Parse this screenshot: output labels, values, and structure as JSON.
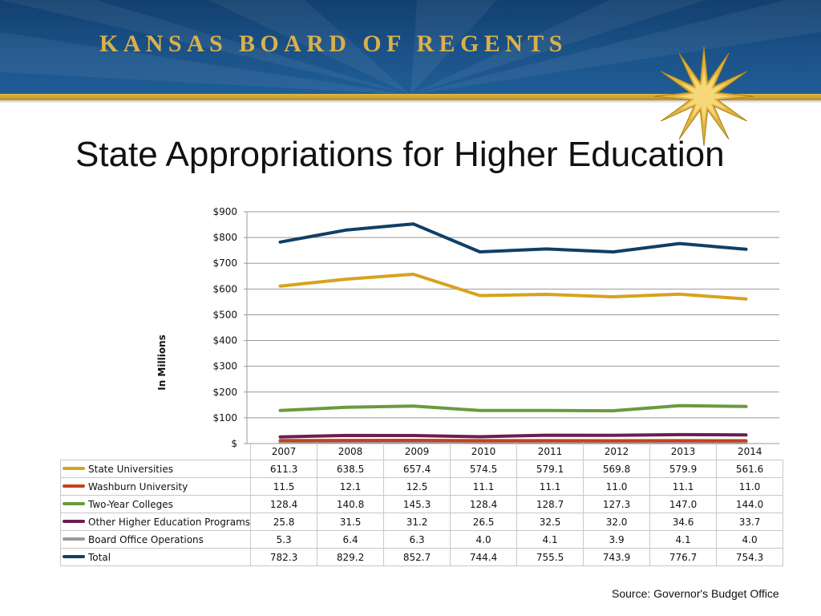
{
  "header": {
    "banner_title": "KANSAS BOARD OF REGENTS"
  },
  "page": {
    "title": "State Appropriations for Higher Education",
    "source": "Source: Governor's Budget Office"
  },
  "colors": {
    "banner": "#1b5288",
    "gold": "#d9b14a",
    "state_universities": "#d8a21e",
    "washburn": "#c8401c",
    "two_year": "#6a9a3e",
    "other": "#6a1f4f",
    "board_office": "#9a9a9a",
    "total": "#0f3f66"
  },
  "chart_data": {
    "type": "line",
    "ylabel": "In Millions",
    "ylim": [
      0,
      900
    ],
    "ytick_values": [
      0,
      100,
      200,
      300,
      400,
      500,
      600,
      700,
      800,
      900
    ],
    "ytick_labels": [
      "$",
      "$100",
      "$200",
      "$300",
      "$400",
      "$500",
      "$600",
      "$700",
      "$800",
      "$900"
    ],
    "grid": true,
    "categories": [
      "2007",
      "2008",
      "2009",
      "2010",
      "2011",
      "2012",
      "2013",
      "2014"
    ],
    "series": [
      {
        "name": "State Universities",
        "color": "#d8a21e",
        "values": [
          611.3,
          638.5,
          657.4,
          574.5,
          579.1,
          569.8,
          579.9,
          561.6
        ],
        "labels": [
          "611.3",
          "638.5",
          "657.4",
          "574.5",
          "579.1",
          "569.8",
          "579.9",
          "561.6"
        ]
      },
      {
        "name": "Washburn University",
        "color": "#c8401c",
        "values": [
          11.5,
          12.1,
          12.5,
          11.1,
          11.1,
          11.0,
          11.1,
          11.0
        ],
        "labels": [
          "11.5",
          "12.1",
          "12.5",
          "11.1",
          "11.1",
          "11.0",
          "11.1",
          "11.0"
        ]
      },
      {
        "name": "Two-Year Colleges",
        "color": "#6a9a3e",
        "values": [
          128.4,
          140.8,
          145.3,
          128.4,
          128.7,
          127.3,
          147.0,
          144.0
        ],
        "labels": [
          "128.4",
          "140.8",
          "145.3",
          "128.4",
          "128.7",
          "127.3",
          "147.0",
          "144.0"
        ]
      },
      {
        "name": "Other Higher Education Programs",
        "color": "#6a1f4f",
        "values": [
          25.8,
          31.5,
          31.2,
          26.5,
          32.5,
          32.0,
          34.6,
          33.7
        ],
        "labels": [
          "25.8",
          "31.5",
          "31.2",
          "26.5",
          "32.5",
          "32.0",
          "34.6",
          "33.7"
        ]
      },
      {
        "name": "Board Office Operations",
        "color": "#9a9a9a",
        "values": [
          5.3,
          6.4,
          6.3,
          4.0,
          4.1,
          3.9,
          4.1,
          4.0
        ],
        "labels": [
          "5.3",
          "6.4",
          "6.3",
          "4.0",
          "4.1",
          "3.9",
          "4.1",
          "4.0"
        ]
      },
      {
        "name": "Total",
        "color": "#0f3f66",
        "values": [
          782.3,
          829.2,
          852.7,
          744.4,
          755.5,
          743.9,
          776.7,
          754.3
        ],
        "labels": [
          "782.3",
          "829.2",
          "852.7",
          "744.4",
          "755.5",
          "743.9",
          "776.7",
          "754.3"
        ]
      }
    ]
  }
}
